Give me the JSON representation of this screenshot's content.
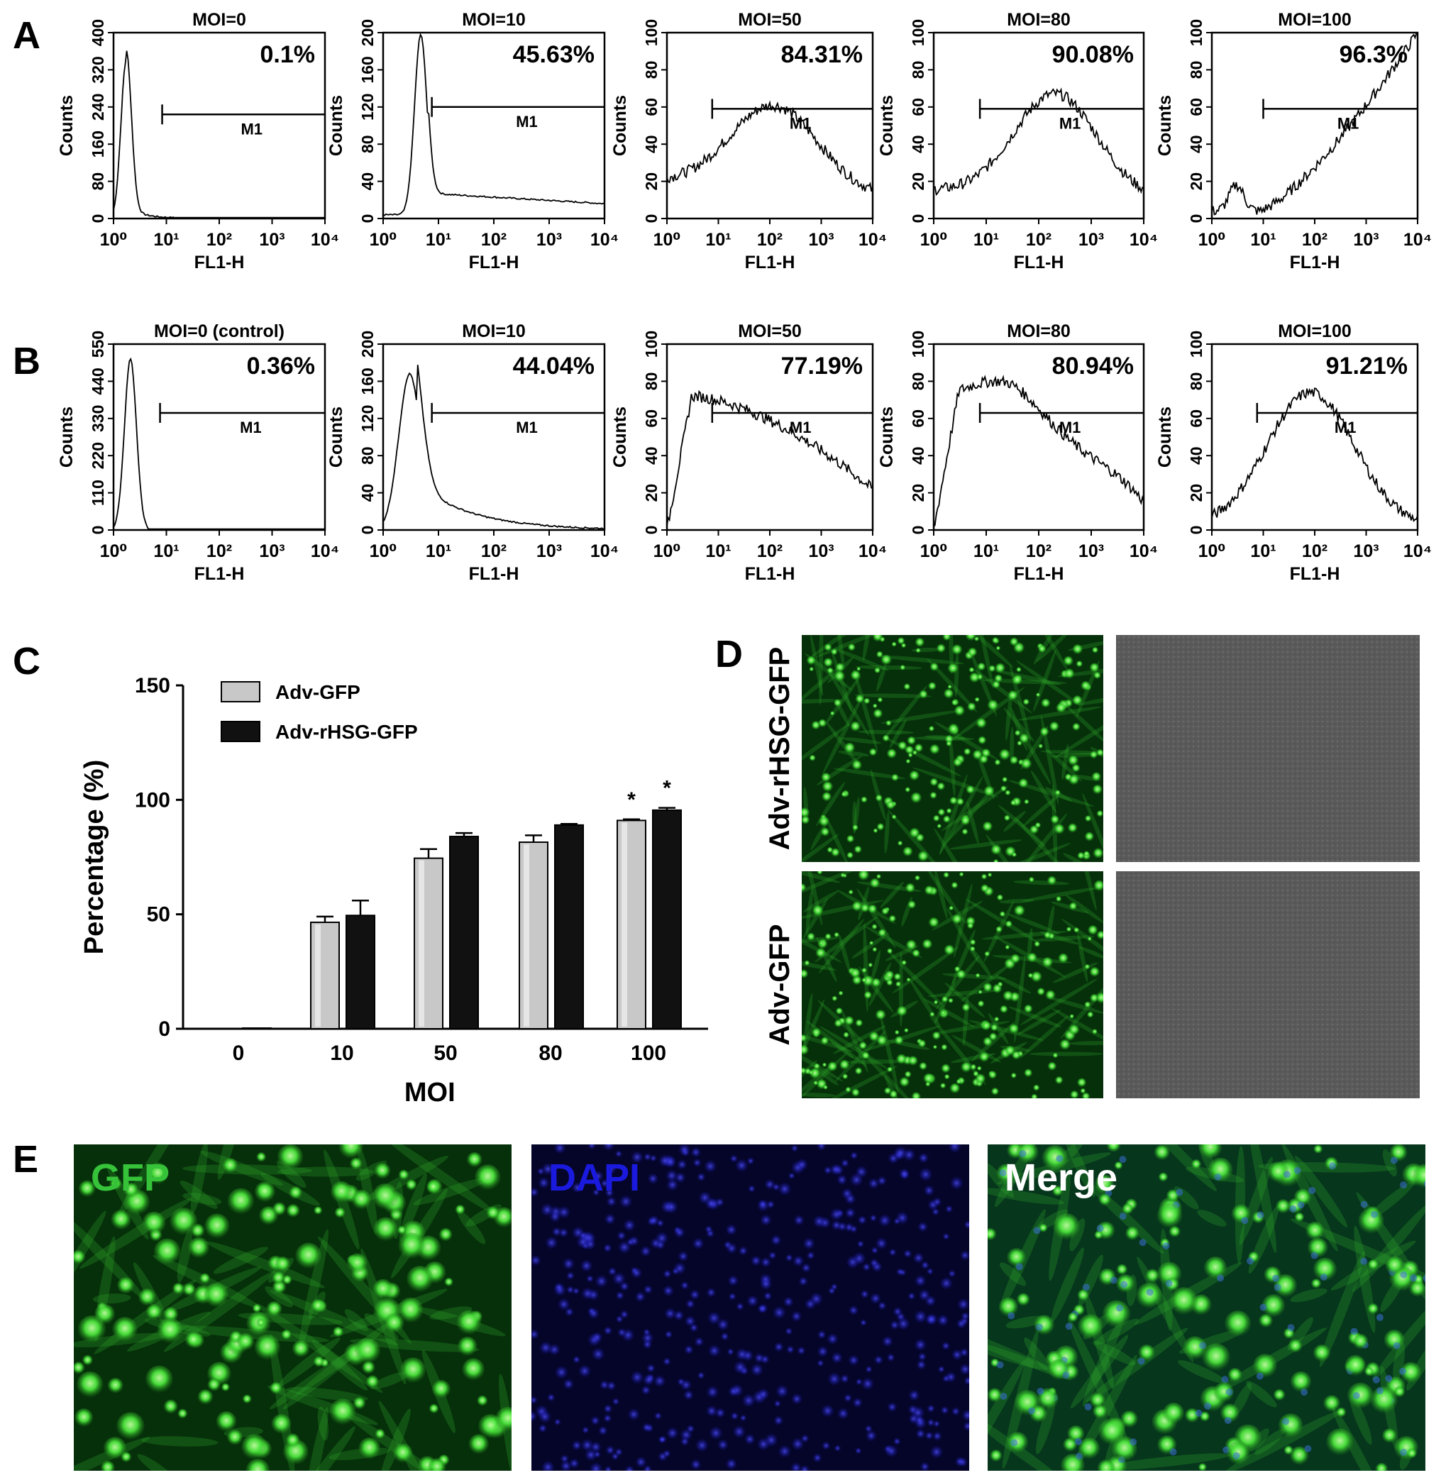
{
  "panel_letters": [
    "A",
    "B",
    "C",
    "D",
    "E"
  ],
  "histogram_common": {
    "ylabel": "Counts",
    "xlabel": "FL1-H",
    "x_ticks": [
      "10⁰",
      "10¹",
      "10²",
      "10³",
      "10⁴"
    ],
    "gate_label": "M1"
  },
  "panel_A": [
    {
      "title": "MOI=0",
      "percent": "0.1%",
      "y_ticks": [
        "0",
        "80",
        "160",
        "240",
        "320",
        "400"
      ]
    },
    {
      "title": "MOI=10",
      "percent": "45.63%",
      "y_ticks": [
        "0",
        "40",
        "80",
        "120",
        "160",
        "200"
      ]
    },
    {
      "title": "MOI=50",
      "percent": "84.31%",
      "y_ticks": [
        "0",
        "20",
        "40",
        "60",
        "80",
        "100"
      ]
    },
    {
      "title": "MOI=80",
      "percent": "90.08%",
      "y_ticks": [
        "0",
        "20",
        "40",
        "60",
        "80",
        "100"
      ]
    },
    {
      "title": "MOI=100",
      "percent": "96.3%",
      "y_ticks": [
        "0",
        "20",
        "40",
        "60",
        "80",
        "100"
      ]
    }
  ],
  "panel_B": [
    {
      "title": "MOI=0 (control)",
      "percent": "0.36%",
      "y_ticks": [
        "0",
        "110",
        "220",
        "330",
        "440",
        "550"
      ]
    },
    {
      "title": "MOI=10",
      "percent": "44.04%",
      "y_ticks": [
        "0",
        "40",
        "80",
        "120",
        "160",
        "200"
      ]
    },
    {
      "title": "MOI=50",
      "percent": "77.19%",
      "y_ticks": [
        "0",
        "20",
        "40",
        "60",
        "80",
        "100"
      ]
    },
    {
      "title": "MOI=80",
      "percent": "80.94%",
      "y_ticks": [
        "0",
        "20",
        "40",
        "60",
        "80",
        "100"
      ]
    },
    {
      "title": "MOI=100",
      "percent": "91.21%",
      "y_ticks": [
        "0",
        "20",
        "40",
        "60",
        "80",
        "100"
      ]
    }
  ],
  "chart_data": {
    "type": "bar",
    "title": "",
    "xlabel": "MOI",
    "ylabel": "Percentage (%)",
    "categories": [
      "0",
      "10",
      "50",
      "80",
      "100"
    ],
    "ylim": [
      0,
      150
    ],
    "y_ticks": [
      "0",
      "50",
      "100",
      "150"
    ],
    "series": [
      {
        "name": "Adv-GFP",
        "values": [
          0.1,
          46.5,
          74.5,
          81.5,
          91
        ],
        "errors": [
          0,
          2.5,
          4,
          3,
          0.5
        ]
      },
      {
        "name": "Adv-rHSG-GFP",
        "values": [
          0.3,
          49.5,
          84,
          89,
          95.5
        ],
        "errors": [
          0,
          6.5,
          1.5,
          0.5,
          1
        ]
      }
    ],
    "significance": [
      "",
      "",
      "",
      "",
      "*"
    ],
    "legend_position": "top-left"
  },
  "panel_D": {
    "row_labels": [
      "Adv-rHSG-GFP",
      "Adv-GFP"
    ]
  },
  "panel_E": {
    "labels": [
      "GFP",
      "DAPI",
      "Merge"
    ],
    "label_colors": [
      "#36c33a",
      "#1a1adf",
      "#ffffff"
    ]
  },
  "colors": {
    "bar_gfp": "#c8c8c8",
    "bar_rhsg": "#111111",
    "gfp_green": "#2fd12f",
    "dapi_blue": "#1b1bd0"
  }
}
